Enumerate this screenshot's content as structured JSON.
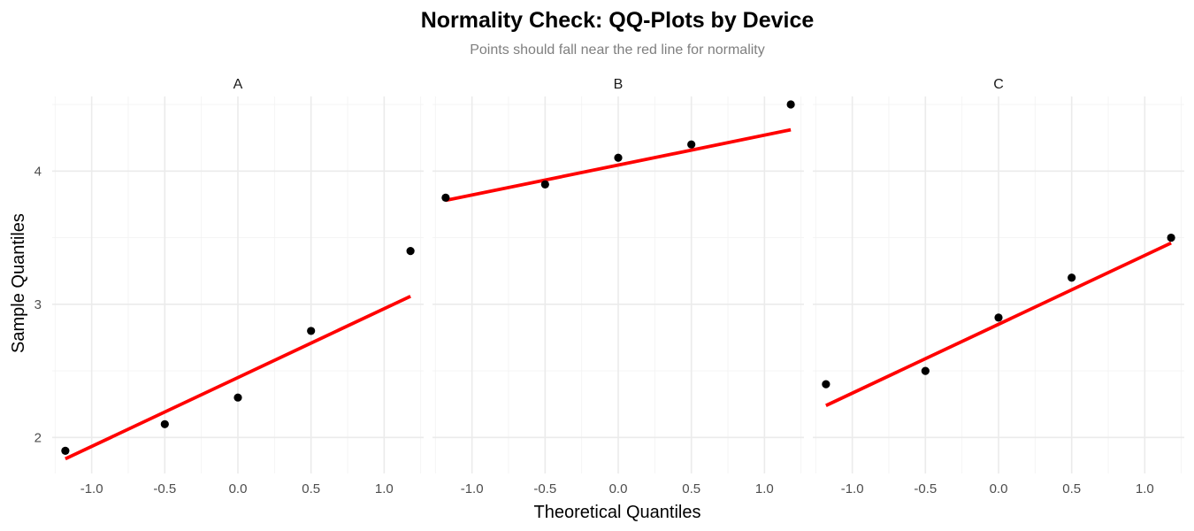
{
  "chart_data": {
    "type": "scatter",
    "title": "Normality Check: QQ-Plots by Device",
    "subtitle": "Points should fall near the red line for normality",
    "xlabel": "Theoretical Quantiles",
    "ylabel": "Sample Quantiles",
    "xlim": [
      -1.27,
      1.27
    ],
    "ylim": [
      1.73,
      4.56
    ],
    "x_ticks": [
      -1.0,
      -0.5,
      0.0,
      0.5,
      1.0
    ],
    "x_tick_labels": [
      "-1.0",
      "-0.5",
      "0.0",
      "0.5",
      "1.0"
    ],
    "y_ticks": [
      2,
      3,
      4
    ],
    "y_tick_labels": [
      "2",
      "3",
      "4"
    ],
    "grid": true,
    "point_color": "#000000",
    "line_color": "#ff0000",
    "panels": [
      {
        "label": "A",
        "points": [
          {
            "x": -1.18,
            "y": 1.9
          },
          {
            "x": -0.5,
            "y": 2.1
          },
          {
            "x": 0.0,
            "y": 2.3
          },
          {
            "x": 0.5,
            "y": 2.8
          },
          {
            "x": 1.18,
            "y": 3.4
          }
        ],
        "line": {
          "x1": -1.18,
          "y1": 1.84,
          "x2": 1.18,
          "y2": 3.06
        }
      },
      {
        "label": "B",
        "points": [
          {
            "x": -1.18,
            "y": 3.8
          },
          {
            "x": -0.5,
            "y": 3.9
          },
          {
            "x": 0.0,
            "y": 4.1
          },
          {
            "x": 0.5,
            "y": 4.2
          },
          {
            "x": 1.18,
            "y": 4.5
          }
        ],
        "line": {
          "x1": -1.18,
          "y1": 3.78,
          "x2": 1.18,
          "y2": 4.31
        }
      },
      {
        "label": "C",
        "points": [
          {
            "x": -1.18,
            "y": 2.4
          },
          {
            "x": -0.5,
            "y": 2.5
          },
          {
            "x": 0.0,
            "y": 2.9
          },
          {
            "x": 0.5,
            "y": 3.2
          },
          {
            "x": 1.18,
            "y": 3.5
          }
        ],
        "line": {
          "x1": -1.18,
          "y1": 2.24,
          "x2": 1.18,
          "y2": 3.46
        }
      }
    ]
  }
}
